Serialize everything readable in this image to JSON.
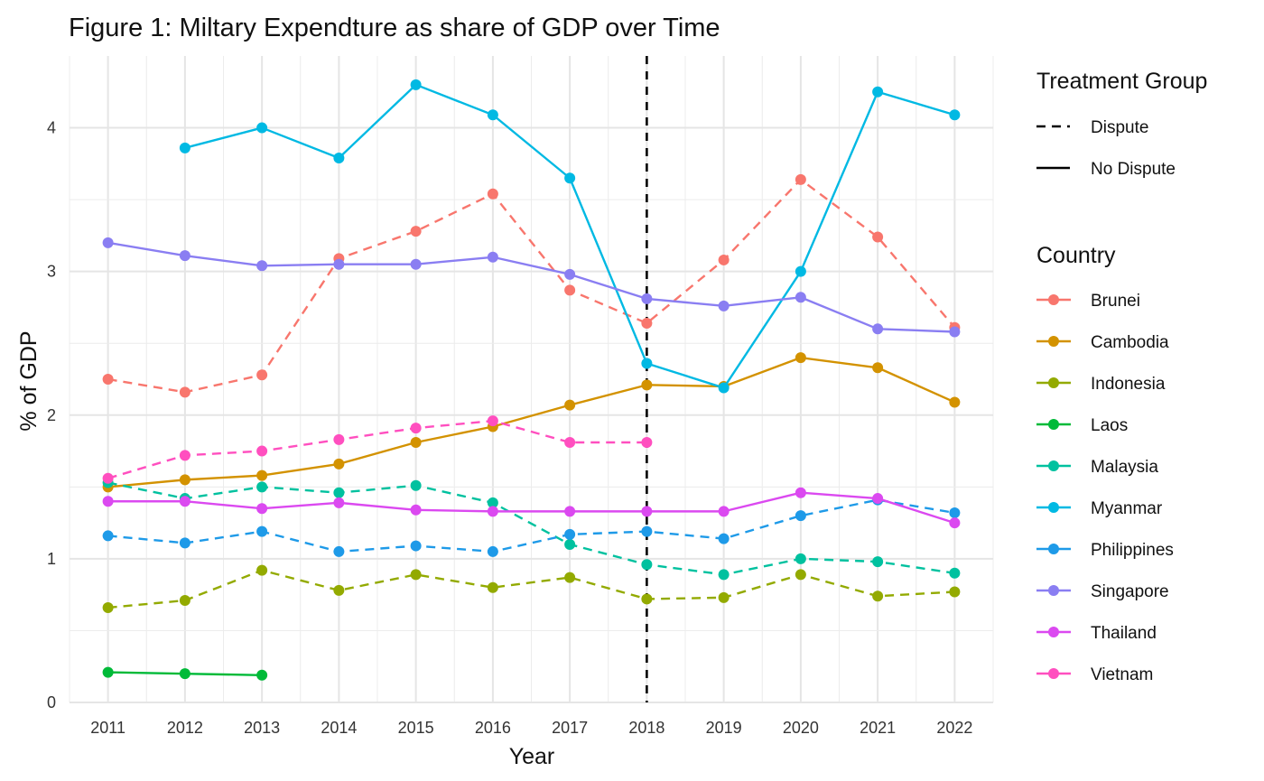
{
  "chart_data": {
    "type": "line",
    "title": "Figure 1: Miltary Expendture as share of GDP over Time",
    "xlabel": "Year",
    "ylabel": "% of GDP",
    "x": [
      2011,
      2012,
      2013,
      2014,
      2015,
      2016,
      2017,
      2018,
      2019,
      2020,
      2021,
      2022
    ],
    "x_tick_labels": [
      "2011",
      "2012",
      "2013",
      "2014",
      "2015",
      "2016",
      "2017",
      "2018",
      "2019",
      "2020",
      "2021",
      "2022"
    ],
    "ylim": [
      0,
      4.5
    ],
    "y_ticks": [
      0,
      1,
      2,
      3,
      4
    ],
    "y_tick_labels": [
      "0",
      "1",
      "2",
      "3",
      "4"
    ],
    "grid": true,
    "reference_line": {
      "x": 2018,
      "style": "dashed",
      "color": "#000000"
    },
    "legend_placement": "right",
    "linetype_legend": {
      "title": "Treatment Group",
      "items": [
        {
          "label": "Dispute",
          "style": "dashed"
        },
        {
          "label": "No Dispute",
          "style": "solid"
        }
      ]
    },
    "color_legend": {
      "title": "Country"
    },
    "series": [
      {
        "name": "Brunei",
        "color": "#F8766D",
        "group": "Dispute",
        "values": [
          2.25,
          2.16,
          2.28,
          3.09,
          3.28,
          3.54,
          2.87,
          2.64,
          3.08,
          3.64,
          3.24,
          2.61
        ]
      },
      {
        "name": "Cambodia",
        "color": "#D39200",
        "group": "No Dispute",
        "values": [
          1.5,
          1.55,
          1.58,
          1.66,
          1.81,
          1.92,
          2.07,
          2.21,
          2.2,
          2.4,
          2.33,
          2.09
        ]
      },
      {
        "name": "Indonesia",
        "color": "#93AA00",
        "group": "Dispute",
        "values": [
          0.66,
          0.71,
          0.92,
          0.78,
          0.89,
          0.8,
          0.87,
          0.72,
          0.73,
          0.89,
          0.74,
          0.77
        ]
      },
      {
        "name": "Laos",
        "color": "#00BA38",
        "group": "No Dispute",
        "values": [
          0.21,
          0.2,
          0.19,
          null,
          null,
          null,
          null,
          null,
          null,
          null,
          null,
          null
        ]
      },
      {
        "name": "Malaysia",
        "color": "#00C19F",
        "group": "Dispute",
        "values": [
          1.53,
          1.42,
          1.5,
          1.46,
          1.51,
          1.39,
          1.1,
          0.96,
          0.89,
          1.0,
          0.98,
          0.9
        ]
      },
      {
        "name": "Myanmar",
        "color": "#00B9E3",
        "group": "No Dispute",
        "values": [
          null,
          3.86,
          4.0,
          3.79,
          4.3,
          4.09,
          3.65,
          2.36,
          2.19,
          3.0,
          4.25,
          4.09
        ]
      },
      {
        "name": "Philippines",
        "color": "#1E9AE8",
        "group": "Dispute",
        "values": [
          1.16,
          1.11,
          1.19,
          1.05,
          1.09,
          1.05,
          1.17,
          1.19,
          1.14,
          1.3,
          1.41,
          1.32
        ]
      },
      {
        "name": "Singapore",
        "color": "#8A7EF2",
        "group": "No Dispute",
        "values": [
          3.2,
          3.11,
          3.04,
          3.05,
          3.05,
          3.1,
          2.98,
          2.81,
          2.76,
          2.82,
          2.6,
          2.58
        ]
      },
      {
        "name": "Thailand",
        "color": "#DB49F0",
        "group": "No Dispute",
        "values": [
          1.4,
          1.4,
          1.35,
          1.39,
          1.34,
          1.33,
          1.33,
          1.33,
          1.33,
          1.46,
          1.42,
          1.25
        ]
      },
      {
        "name": "Vietnam",
        "color": "#FF4FBF",
        "group": "Dispute",
        "values": [
          1.56,
          1.72,
          1.75,
          1.83,
          1.91,
          1.96,
          1.81,
          1.81,
          null,
          null,
          null,
          null
        ]
      }
    ]
  }
}
